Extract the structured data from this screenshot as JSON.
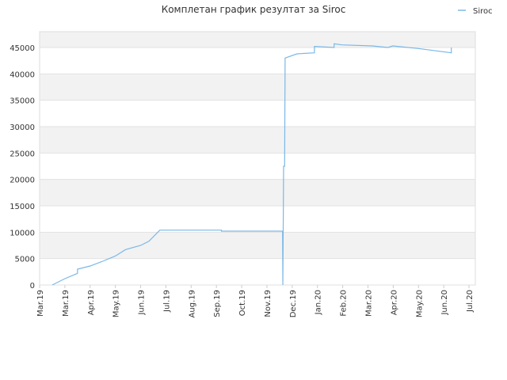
{
  "chart_data": {
    "type": "line",
    "title": "Комплетан график резултат за Siroc",
    "x": [
      0.5,
      1.0,
      1.5,
      1.5,
      2.0,
      2.5,
      3.0,
      3.4,
      4.0,
      4.33,
      4.76,
      7.2,
      7.2,
      9.62,
      9.63,
      9.66,
      9.7,
      9.72,
      10.19,
      10.88,
      10.88,
      11.66,
      11.66,
      11.97,
      13.17,
      13.79,
      13.98,
      15.0,
      16.3,
      16.3
    ],
    "series": [
      {
        "name": "Siroc",
        "color": "#7ab8e8",
        "values": [
          0,
          1200,
          2200,
          3000,
          3600,
          4500,
          5500,
          6700,
          7500,
          8300,
          10400,
          10400,
          10200,
          10200,
          0,
          22500,
          22500,
          43000,
          43800,
          44000,
          45200,
          45000,
          45700,
          45500,
          45300,
          45000,
          45300,
          44800,
          44000,
          45000
        ]
      }
    ],
    "xlim": [
      0,
      17.25
    ],
    "xticks": [
      {
        "value": 0,
        "label": "Mar.19"
      },
      {
        "value": 1,
        "label": "Mar.19"
      },
      {
        "value": 2,
        "label": "Apr.19"
      },
      {
        "value": 3,
        "label": "May.19"
      },
      {
        "value": 4,
        "label": "Jun.19"
      },
      {
        "value": 5,
        "label": "Jul.19"
      },
      {
        "value": 6,
        "label": "Aug.19"
      },
      {
        "value": 7,
        "label": "Sep.19"
      },
      {
        "value": 8,
        "label": "Oct.19"
      },
      {
        "value": 9,
        "label": "Nov.19"
      },
      {
        "value": 10,
        "label": "Dec.19"
      },
      {
        "value": 11,
        "label": "Jan.20"
      },
      {
        "value": 12,
        "label": "Feb.20"
      },
      {
        "value": 13,
        "label": "Mar.20"
      },
      {
        "value": 14,
        "label": "Apr.20"
      },
      {
        "value": 15,
        "label": "May.20"
      },
      {
        "value": 16,
        "label": "Jun.20"
      },
      {
        "value": 17,
        "label": "Jul.20"
      }
    ],
    "ylim": [
      0,
      48000
    ],
    "yticks": [
      0,
      5000,
      10000,
      15000,
      20000,
      25000,
      30000,
      35000,
      40000,
      45000
    ],
    "grid": true,
    "legend": "top-right"
  }
}
